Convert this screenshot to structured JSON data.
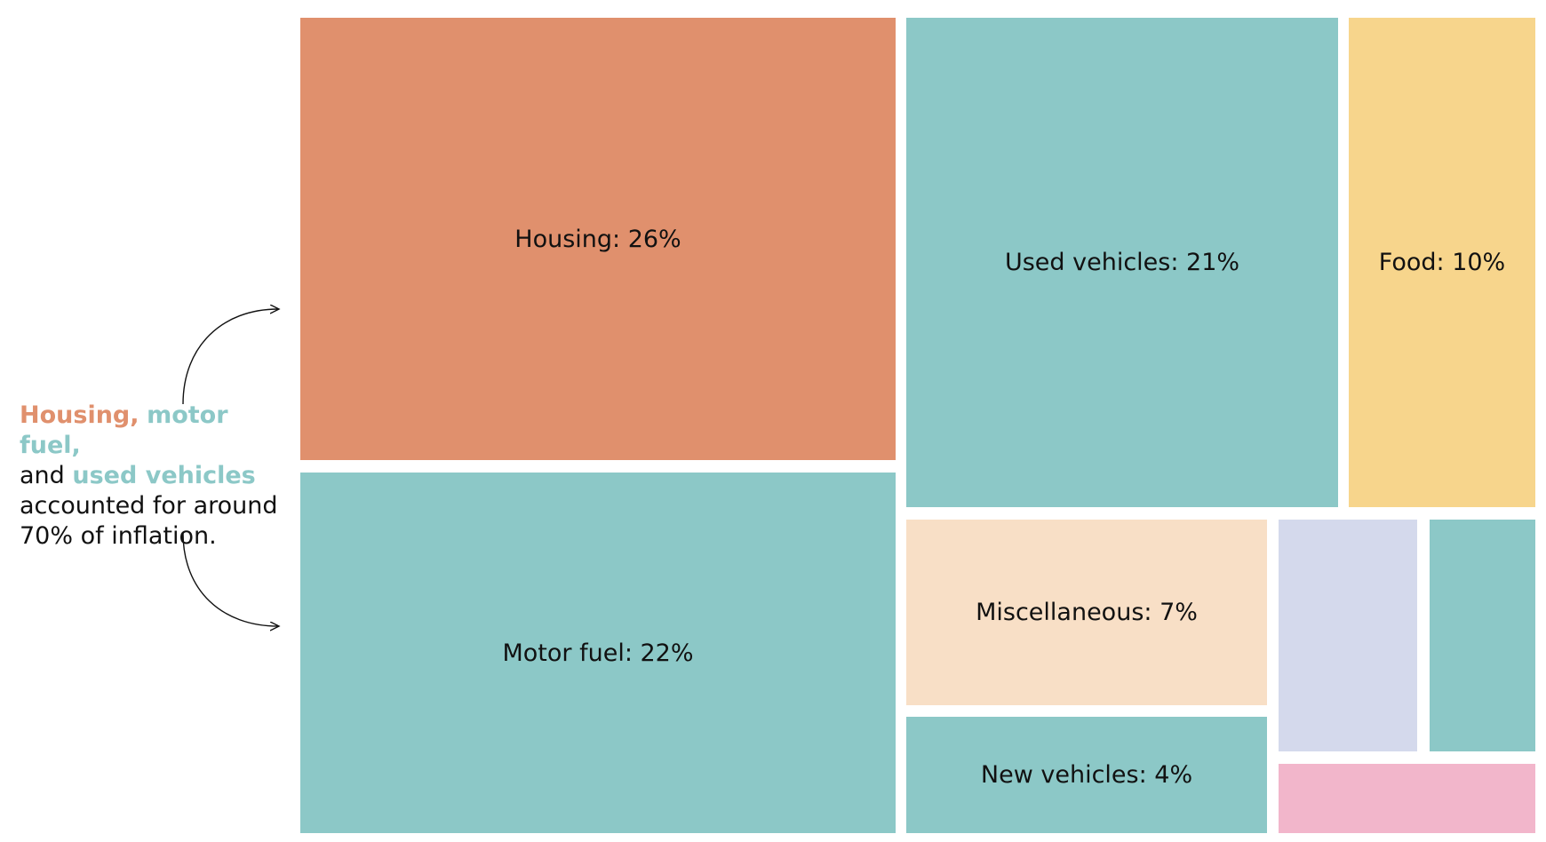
{
  "chart_data": {
    "type": "treemap",
    "title": "",
    "unit": "%",
    "cells": [
      {
        "name": "Housing",
        "value": 26,
        "label": "Housing: 26%",
        "color": "#E0906D"
      },
      {
        "name": "Motor fuel",
        "value": 22,
        "label": "Motor fuel: 22%",
        "color": "#8CC8C7"
      },
      {
        "name": "Used vehicles",
        "value": 21,
        "label": "Used vehicles: 21%",
        "color": "#8CC8C7"
      },
      {
        "name": "Food",
        "value": 10,
        "label": "Food: 10%",
        "color": "#F7D58C"
      },
      {
        "name": "Miscellaneous",
        "value": 7,
        "label": "Miscellaneous: 7%",
        "color": "#F8DFC6"
      },
      {
        "name": "New vehicles",
        "value": 4,
        "label": "New vehicles: 4%",
        "color": "#8CC8C7"
      },
      {
        "name": "",
        "value": null,
        "label": "",
        "color": "#D4D9EC"
      },
      {
        "name": "",
        "value": null,
        "label": "",
        "color": "#8CC8C7"
      },
      {
        "name": "",
        "value": null,
        "label": "",
        "color": "#F2B6CB"
      }
    ]
  },
  "annotation": {
    "housing": "Housing,",
    "motor_fuel": "motor fuel,",
    "and": "and",
    "used_vehicles": "used vehicles",
    "line3": "accounted for around",
    "line4": "70% of inflation.",
    "colors": {
      "housing": "#E0906D",
      "teal": "#8CC8C7"
    }
  }
}
